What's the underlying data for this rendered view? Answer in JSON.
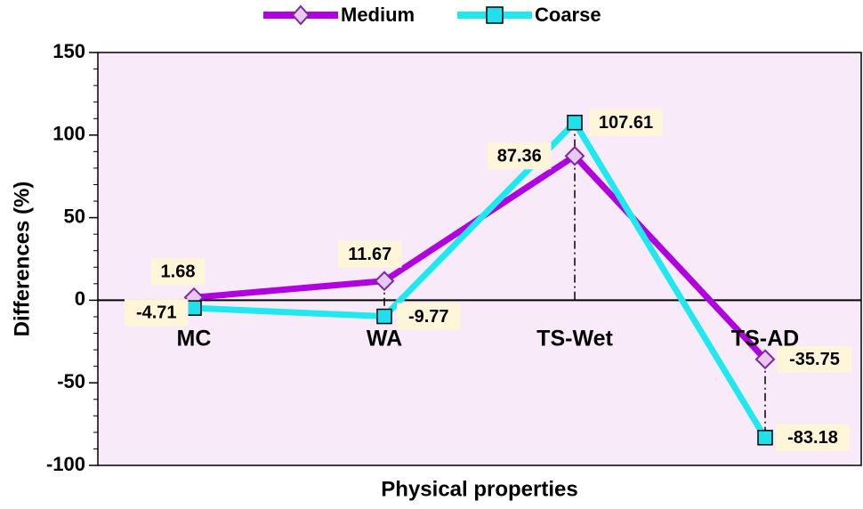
{
  "chart_data": {
    "type": "line",
    "categories": [
      "MC",
      "WA",
      "TS-Wet",
      "TS-AD"
    ],
    "series": [
      {
        "name": "Medium",
        "values": [
          1.68,
          11.67,
          87.36,
          -35.75
        ],
        "color": "#B000E0",
        "marker": "diamond",
        "marker_fill": "#E8C8F0"
      },
      {
        "name": "Coarse",
        "values": [
          -4.71,
          -9.77,
          107.61,
          -83.18
        ],
        "color": "#20E8F0",
        "marker": "square",
        "marker_fill": "#20E0EE"
      }
    ],
    "data_labels": {
      "Medium": [
        "1.68",
        "11.67",
        "87.36",
        "-35.75"
      ],
      "Coarse": [
        "-4.71",
        "-9.77",
        "107.61",
        "-83.18"
      ]
    },
    "xlabel": "Physical properties",
    "ylabel": "Differences (%)",
    "ylim": [
      -100,
      150
    ],
    "yticks": [
      150,
      100,
      50,
      0,
      -50,
      -100
    ],
    "ytick_labels": [
      "150",
      "100",
      "50",
      "0",
      "-50",
      "-100"
    ],
    "legend_position": "top-center",
    "plot_background": "#F9EAF9",
    "label_background": "#FFF6D9"
  }
}
